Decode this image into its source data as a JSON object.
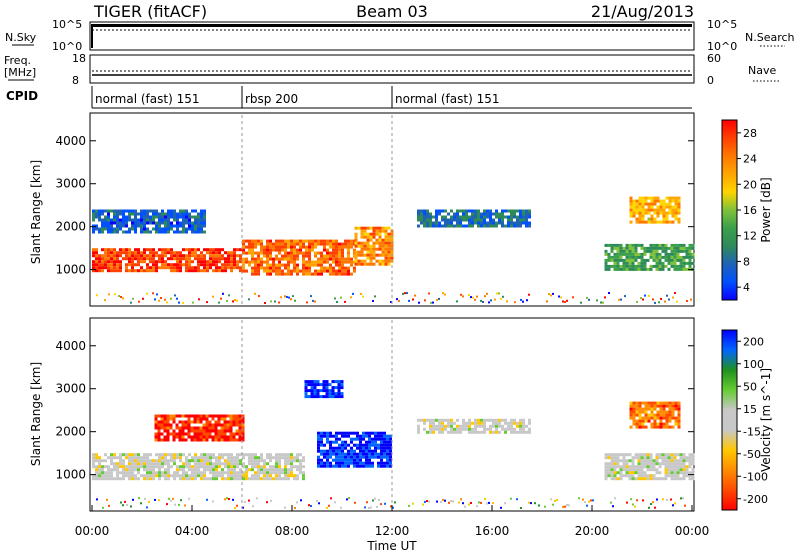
{
  "header": {
    "radar": "TIGER (fitACF)",
    "beam": "Beam 03",
    "date": "21/Aug/2013"
  },
  "status_panels": {
    "nsky_label": "N.Sky",
    "nsearch_label": "N.Search",
    "nsky_ticks": [
      "10^5",
      "10^0"
    ],
    "nsearch_ticks": [
      "10^5",
      "10^0"
    ],
    "freq_label": "Freq.",
    "freq_unit": "[MHz]",
    "freq_ticks": [
      "18",
      "8"
    ],
    "nave_label": "Nave",
    "nave_ticks": [
      "60",
      "0"
    ],
    "cpid_label": "CPID",
    "cpid_segments": [
      {
        "name": "normal (fast) 151",
        "start": 0.0,
        "end": 6.0
      },
      {
        "name": "rbsp 200",
        "start": 6.0,
        "end": 12.0
      },
      {
        "name": "normal (fast) 151",
        "start": 12.0,
        "end": 24.0
      }
    ]
  },
  "chart_data": [
    {
      "type": "heatmap",
      "title": "",
      "ylabel": "Slant Range [km]",
      "xlabel": "",
      "xlim": [
        0,
        24
      ],
      "ylim": [
        200,
        4600
      ],
      "yticks": [
        "4000",
        "3000",
        "2000",
        "1000"
      ],
      "colorbar": {
        "label": "Power [dB]",
        "ticks": [
          "28",
          "24",
          "20",
          "16",
          "12",
          "8",
          "4"
        ],
        "range": [
          0,
          30
        ],
        "colors": [
          "#0a00ff",
          "#0050ff",
          "#1f63b5",
          "#2f8a5a",
          "#3aa04a",
          "#7fc23a",
          "#ffd400",
          "#ffa500",
          "#ff7800",
          "#ff4000",
          "#ff0000"
        ]
      },
      "echo_regions": [
        {
          "t_start": 0.0,
          "t_end": 6.0,
          "range_low": 1000,
          "range_high": 1500,
          "value": 26
        },
        {
          "t_start": 6.0,
          "t_end": 10.5,
          "range_low": 900,
          "range_high": 1700,
          "value": 24
        },
        {
          "t_start": 10.5,
          "t_end": 12.0,
          "range_low": 1100,
          "range_high": 2000,
          "value": 22
        },
        {
          "t_start": 0.0,
          "t_end": 4.5,
          "range_low": 1900,
          "range_high": 2400,
          "value": 6
        },
        {
          "t_start": 13.0,
          "t_end": 17.5,
          "range_low": 2000,
          "range_high": 2400,
          "value": 7
        },
        {
          "t_start": 20.5,
          "t_end": 24.0,
          "range_low": 1000,
          "range_high": 1600,
          "value": 12
        },
        {
          "t_start": 21.5,
          "t_end": 23.5,
          "range_low": 2100,
          "range_high": 2700,
          "value": 20
        }
      ]
    },
    {
      "type": "heatmap",
      "title": "",
      "ylabel": "Slant Range [km]",
      "xlabel": "Time UT",
      "xlim": [
        0,
        24
      ],
      "ylim": [
        200,
        4600
      ],
      "xticks": [
        "00:00",
        "04:00",
        "08:00",
        "12:00",
        "16:00",
        "20:00",
        "00:00"
      ],
      "yticks": [
        "4000",
        "3000",
        "2000",
        "1000"
      ],
      "colorbar": {
        "label": "Velocity [m s^-1]",
        "ticks": [
          "200",
          "100",
          "50",
          "15",
          "-15",
          "-50",
          "-100",
          "-200"
        ],
        "range": [
          -250,
          250
        ],
        "colors": [
          "#ff0000",
          "#ff4a00",
          "#ff8c00",
          "#ffc800",
          "#c8c8c8",
          "#c8c8c8",
          "#66cc33",
          "#209020",
          "#0066ff",
          "#0000ff"
        ]
      },
      "echo_regions": [
        {
          "t_start": 0.0,
          "t_end": 8.5,
          "range_low": 900,
          "range_high": 1500,
          "value": 0
        },
        {
          "t_start": 2.5,
          "t_end": 6.0,
          "range_low": 1800,
          "range_high": 2400,
          "value": -200
        },
        {
          "t_start": 9.0,
          "t_end": 12.0,
          "range_low": 1200,
          "range_high": 2000,
          "value": 220
        },
        {
          "t_start": 8.5,
          "t_end": 10.0,
          "range_low": 2800,
          "range_high": 3200,
          "value": 220
        },
        {
          "t_start": 13.0,
          "t_end": 17.5,
          "range_low": 2000,
          "range_high": 2300,
          "value": 0
        },
        {
          "t_start": 20.5,
          "t_end": 24.0,
          "range_low": 900,
          "range_high": 1500,
          "value": 0
        },
        {
          "t_start": 21.5,
          "t_end": 23.5,
          "range_low": 2100,
          "range_high": 2700,
          "value": -150
        }
      ]
    }
  ]
}
